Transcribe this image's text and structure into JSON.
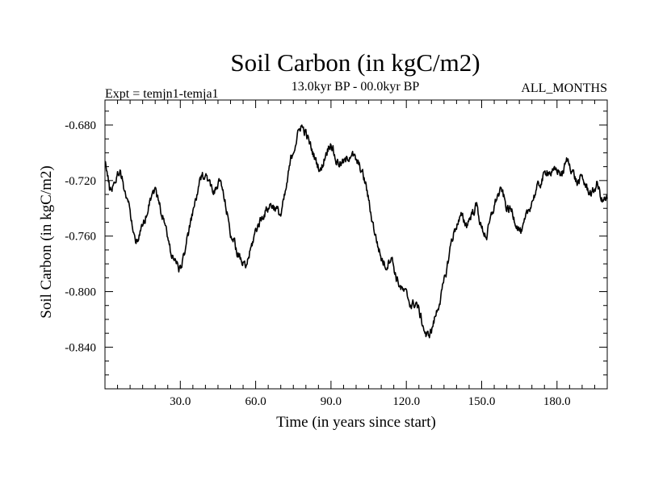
{
  "chart_data": {
    "type": "line",
    "title": "Soil Carbon (in kgC/m2)",
    "subtitle_left": "Expt = temjn1-temja1",
    "subtitle_center": "13.0kyr BP - 00.0kyr BP",
    "subtitle_right": "ALL_MONTHS",
    "xlabel": "Time (in years since start)",
    "ylabel": "Soil Carbon (in kgC/m2)",
    "xlim": [
      0,
      200
    ],
    "ylim": [
      -0.87,
      -0.662
    ],
    "xticks": [
      30,
      60,
      90,
      120,
      150,
      180
    ],
    "xtick_labels": [
      "30.0",
      "60.0",
      "90.0",
      "120.0",
      "150.0",
      "180.0"
    ],
    "yticks": [
      -0.68,
      -0.72,
      -0.76,
      -0.8,
      -0.84
    ],
    "ytick_labels": [
      "-0.680",
      "-0.720",
      "-0.760",
      "-0.800",
      "-0.840"
    ],
    "grid": false,
    "series": [
      {
        "name": "Soil Carbon",
        "color": "#000000",
        "x": [
          0,
          2,
          4,
          6,
          8,
          10,
          12,
          14,
          16,
          18,
          20,
          22,
          24,
          26,
          28,
          30,
          32,
          34,
          36,
          38,
          40,
          42,
          44,
          46,
          48,
          50,
          52,
          54,
          56,
          58,
          60,
          62,
          64,
          66,
          68,
          70,
          72,
          74,
          76,
          78,
          80,
          82,
          84,
          86,
          88,
          90,
          92,
          94,
          96,
          98,
          100,
          102,
          104,
          106,
          108,
          110,
          112,
          114,
          116,
          118,
          120,
          122,
          124,
          126,
          128,
          130,
          132,
          134,
          136,
          138,
          140,
          142,
          144,
          146,
          148,
          150,
          152,
          154,
          156,
          158,
          160,
          162,
          164,
          166,
          168,
          170,
          172,
          174,
          176,
          178,
          180,
          182,
          184,
          186,
          188,
          190,
          192,
          194,
          196,
          198,
          200
        ],
        "values": [
          -0.704,
          -0.728,
          -0.72,
          -0.712,
          -0.728,
          -0.742,
          -0.764,
          -0.758,
          -0.748,
          -0.732,
          -0.726,
          -0.74,
          -0.752,
          -0.77,
          -0.778,
          -0.785,
          -0.768,
          -0.752,
          -0.735,
          -0.72,
          -0.714,
          -0.724,
          -0.728,
          -0.72,
          -0.738,
          -0.757,
          -0.768,
          -0.778,
          -0.783,
          -0.77,
          -0.756,
          -0.748,
          -0.742,
          -0.737,
          -0.74,
          -0.745,
          -0.728,
          -0.705,
          -0.692,
          -0.68,
          -0.686,
          -0.696,
          -0.706,
          -0.713,
          -0.7,
          -0.692,
          -0.706,
          -0.708,
          -0.706,
          -0.7,
          -0.706,
          -0.712,
          -0.724,
          -0.745,
          -0.762,
          -0.776,
          -0.782,
          -0.774,
          -0.79,
          -0.798,
          -0.802,
          -0.81,
          -0.808,
          -0.82,
          -0.833,
          -0.828,
          -0.815,
          -0.802,
          -0.785,
          -0.763,
          -0.752,
          -0.746,
          -0.752,
          -0.744,
          -0.738,
          -0.755,
          -0.76,
          -0.745,
          -0.732,
          -0.727,
          -0.74,
          -0.742,
          -0.752,
          -0.758,
          -0.745,
          -0.735,
          -0.726,
          -0.72,
          -0.712,
          -0.715,
          -0.712,
          -0.716,
          -0.705,
          -0.712,
          -0.722,
          -0.718,
          -0.726,
          -0.73,
          -0.722,
          -0.735,
          -0.733
        ]
      }
    ]
  }
}
